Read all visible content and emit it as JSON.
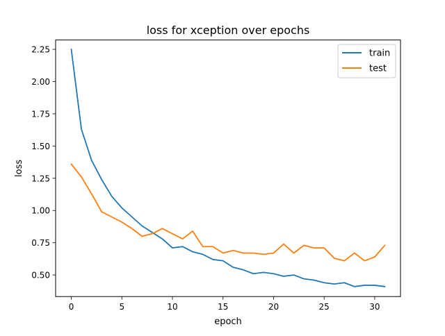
{
  "chart_data": {
    "type": "line",
    "title": "loss for xception over epochs",
    "xlabel": "epoch",
    "ylabel": "loss",
    "xlim": [
      -1.55,
      32.55
    ],
    "ylim": [
      0.3325,
      2.3225
    ],
    "xticks": [
      0,
      5,
      10,
      15,
      20,
      25,
      30
    ],
    "yticks": [
      0.5,
      0.75,
      1.0,
      1.25,
      1.5,
      1.75,
      2.0,
      2.25
    ],
    "grid": false,
    "legend_position": "top-right",
    "x": [
      0,
      1,
      2,
      3,
      4,
      5,
      6,
      7,
      8,
      9,
      10,
      11,
      12,
      13,
      14,
      15,
      16,
      17,
      18,
      19,
      20,
      21,
      22,
      23,
      24,
      25,
      26,
      27,
      28,
      29,
      30,
      31
    ],
    "series": [
      {
        "name": "train",
        "color": "#1f77b4",
        "values": [
          2.25,
          1.63,
          1.39,
          1.24,
          1.11,
          1.02,
          0.95,
          0.88,
          0.83,
          0.78,
          0.71,
          0.72,
          0.68,
          0.66,
          0.62,
          0.61,
          0.56,
          0.54,
          0.51,
          0.52,
          0.51,
          0.49,
          0.5,
          0.47,
          0.46,
          0.44,
          0.43,
          0.44,
          0.41,
          0.42,
          0.42,
          0.41
        ]
      },
      {
        "name": "test",
        "color": "#ff7f0e",
        "values": [
          1.36,
          1.26,
          1.13,
          0.99,
          0.95,
          0.91,
          0.86,
          0.8,
          0.82,
          0.86,
          0.82,
          0.78,
          0.84,
          0.72,
          0.72,
          0.67,
          0.69,
          0.67,
          0.67,
          0.66,
          0.67,
          0.74,
          0.67,
          0.73,
          0.71,
          0.71,
          0.63,
          0.61,
          0.67,
          0.61,
          0.64,
          0.73
        ]
      }
    ]
  }
}
